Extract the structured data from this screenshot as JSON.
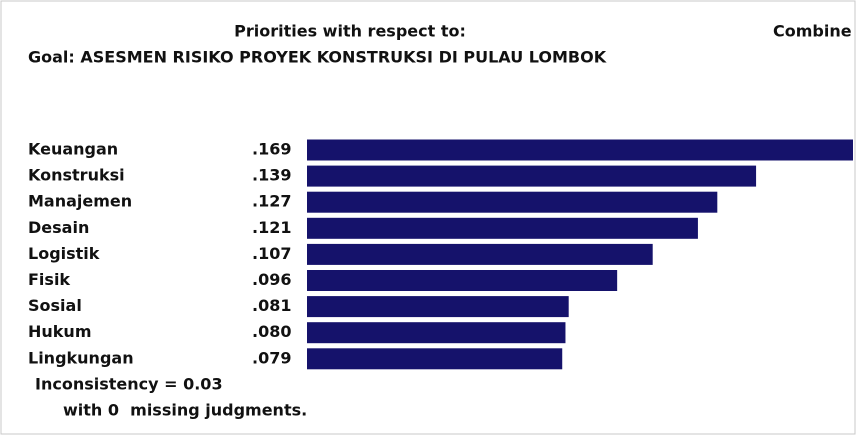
{
  "chart_data": {
    "type": "bar",
    "orientation": "horizontal",
    "title": "Priorities with respect to:",
    "title_right": "Combine",
    "subtitle": "Goal: ASESMEN RISIKO PROYEK KONSTRUKSI DI PULAU LOMBOK",
    "categories": [
      "Keuangan",
      "Konstruksi",
      "Manajemen",
      "Desain",
      "Logistik",
      "Fisik",
      "Sosial",
      "Hukum",
      "Lingkungan"
    ],
    "values": [
      0.169,
      0.139,
      0.127,
      0.121,
      0.107,
      0.096,
      0.081,
      0.08,
      0.079
    ],
    "value_labels": [
      ".169",
      ".139",
      ".127",
      ".121",
      ".107",
      ".096",
      ".081",
      ".080",
      ".079"
    ],
    "color": "#15126b",
    "label_color": "#1f1fe0",
    "annotations": [
      "Inconsistency = 0.03",
      "with 0  missing judgments."
    ]
  }
}
